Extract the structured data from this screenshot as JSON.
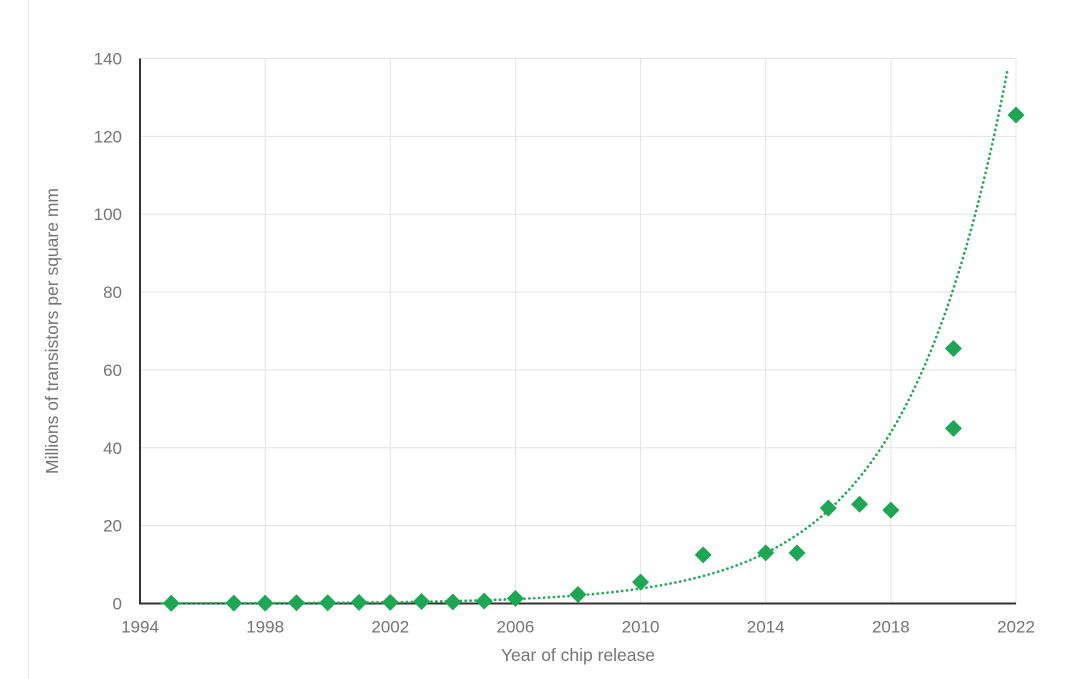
{
  "page": {
    "background": "#ffffff"
  },
  "colors": {
    "series_green": "#1CA853",
    "trendline_green": "#22AA58",
    "axis_line": "#333333",
    "gridline": "#e4e4e4",
    "tick_text": "#757575",
    "axis_title_text": "#757575",
    "edge_line": "#ededed"
  },
  "chart_data": {
    "type": "scatter",
    "title": "",
    "xlabel": "Year of chip release",
    "ylabel": "Millions of transistors per square mm",
    "xlim": [
      1994,
      2022
    ],
    "ylim": [
      0,
      140
    ],
    "x_ticks": [
      1994,
      1998,
      2002,
      2006,
      2010,
      2014,
      2018,
      2022
    ],
    "y_ticks": [
      0,
      20,
      40,
      60,
      80,
      100,
      120,
      140
    ],
    "grid": true,
    "legend_position": "none",
    "marker": "diamond",
    "series": [
      {
        "name": "Millions of transistors per square mm",
        "points": [
          {
            "x": 1995,
            "y": 0.05
          },
          {
            "x": 1997,
            "y": 0.1
          },
          {
            "x": 1998,
            "y": 0.1
          },
          {
            "x": 1999,
            "y": 0.2
          },
          {
            "x": 2000,
            "y": 0.2
          },
          {
            "x": 2001,
            "y": 0.3
          },
          {
            "x": 2002,
            "y": 0.3
          },
          {
            "x": 2003,
            "y": 0.5
          },
          {
            "x": 2004,
            "y": 0.4
          },
          {
            "x": 2005,
            "y": 0.6
          },
          {
            "x": 2006,
            "y": 1.3
          },
          {
            "x": 2008,
            "y": 2.3
          },
          {
            "x": 2010,
            "y": 5.5
          },
          {
            "x": 2012,
            "y": 12.5
          },
          {
            "x": 2014,
            "y": 13
          },
          {
            "x": 2015,
            "y": 13
          },
          {
            "x": 2016,
            "y": 24.5
          },
          {
            "x": 2017,
            "y": 25.5
          },
          {
            "x": 2018,
            "y": 24
          },
          {
            "x": 2020,
            "y": 45
          },
          {
            "x": 2020,
            "y": 65.5
          },
          {
            "x": 2022,
            "y": 125.5
          }
        ]
      }
    ],
    "trendline": {
      "type": "exponential",
      "style": "dotted",
      "description": "y = 140 * exp(0.3048 * (year - 2021.8))",
      "value_at_top": 140,
      "rate_per_year": 0.3048,
      "year_at_top": 2021.8,
      "year_start": 1994.7
    }
  }
}
